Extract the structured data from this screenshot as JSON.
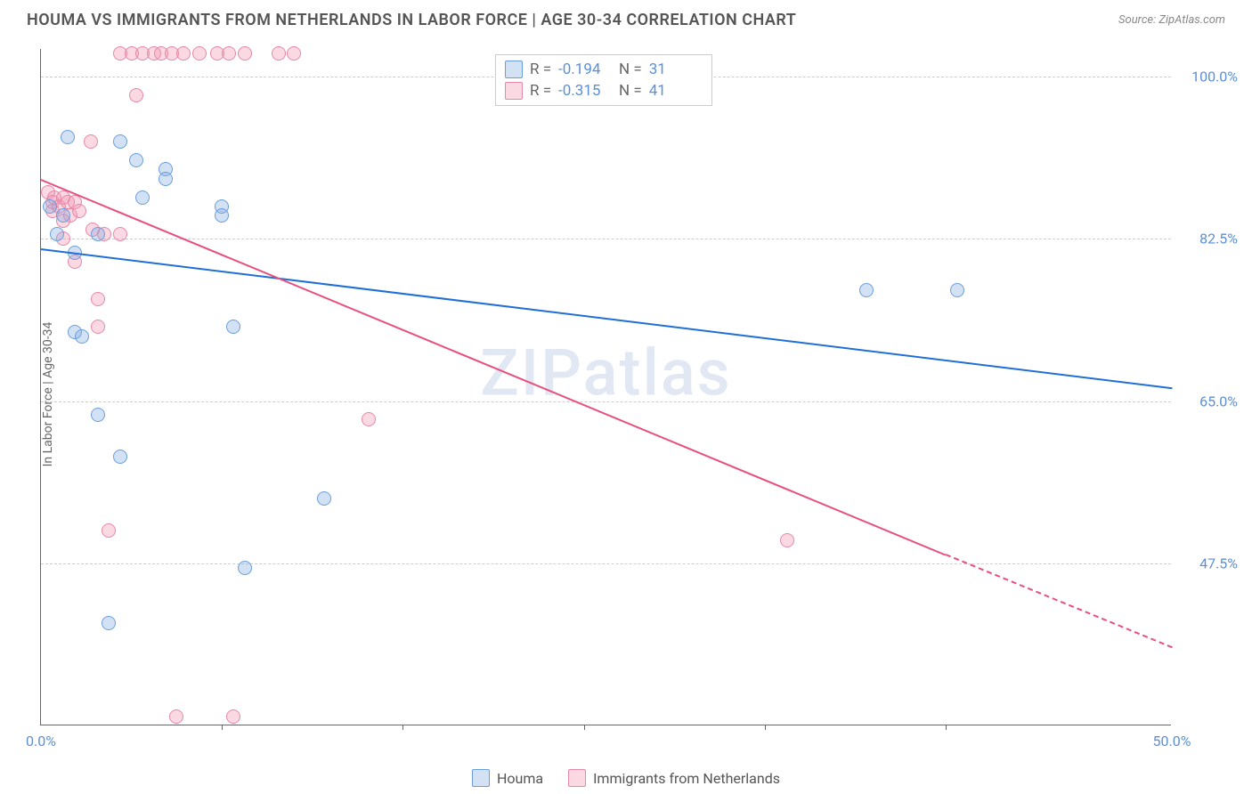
{
  "title": "HOUMA VS IMMIGRANTS FROM NETHERLANDS IN LABOR FORCE | AGE 30-34 CORRELATION CHART",
  "source": "Source: ZipAtlas.com",
  "ylabel": "In Labor Force | Age 30-34",
  "watermark": "ZIPatlas",
  "xlim": [
    0,
    50
  ],
  "ylim": [
    30,
    103
  ],
  "yticks": [
    {
      "v": 100,
      "label": "100.0%"
    },
    {
      "v": 82.5,
      "label": "82.5%"
    },
    {
      "v": 65,
      "label": "65.0%"
    },
    {
      "v": 47.5,
      "label": "47.5%"
    }
  ],
  "xticks_minor": [
    8,
    16,
    24,
    32,
    40
  ],
  "xticks_labeled": [
    {
      "v": 0,
      "label": "0.0%"
    },
    {
      "v": 50,
      "label": "50.0%"
    }
  ],
  "series": {
    "houma": {
      "color_fill": "rgba(130,170,225,0.35)",
      "color_stroke": "#6a9edb",
      "line_color": "#1f6fd6",
      "stats": {
        "R": "-0.194",
        "N": "31"
      },
      "legend_label": "Houma",
      "reg_line": {
        "x1": 0,
        "y1": 81.5,
        "x2": 50,
        "y2": 66.5
      },
      "points": [
        {
          "x": 0.4,
          "y": 86
        },
        {
          "x": 0.7,
          "y": 83
        },
        {
          "x": 1.0,
          "y": 85
        },
        {
          "x": 1.2,
          "y": 93.5
        },
        {
          "x": 1.5,
          "y": 81
        },
        {
          "x": 1.5,
          "y": 72.5
        },
        {
          "x": 1.8,
          "y": 72
        },
        {
          "x": 2.5,
          "y": 63.5
        },
        {
          "x": 2.5,
          "y": 83
        },
        {
          "x": 3.0,
          "y": 41
        },
        {
          "x": 3.5,
          "y": 93
        },
        {
          "x": 3.5,
          "y": 59
        },
        {
          "x": 4.2,
          "y": 91
        },
        {
          "x": 4.5,
          "y": 87
        },
        {
          "x": 5.5,
          "y": 90
        },
        {
          "x": 5.5,
          "y": 89
        },
        {
          "x": 8.0,
          "y": 86
        },
        {
          "x": 8.0,
          "y": 85
        },
        {
          "x": 8.5,
          "y": 73
        },
        {
          "x": 9.0,
          "y": 47
        },
        {
          "x": 12.5,
          "y": 54.5
        },
        {
          "x": 36.5,
          "y": 77
        },
        {
          "x": 40.5,
          "y": 77
        }
      ]
    },
    "netherlands": {
      "color_fill": "rgba(240,145,175,0.35)",
      "color_stroke": "#e688a8",
      "line_color": "#e84f7d",
      "stats": {
        "R": "-0.315",
        "N": "41"
      },
      "legend_label": "Immigrants from Netherlands",
      "reg_line": {
        "x1": 0,
        "y1": 89,
        "x2": 40,
        "y2": 48.5
      },
      "reg_line_ext": {
        "x1": 40,
        "y1": 48.5,
        "x2": 50,
        "y2": 38.5
      },
      "points": [
        {
          "x": 0.3,
          "y": 87.5
        },
        {
          "x": 0.5,
          "y": 86.5
        },
        {
          "x": 0.5,
          "y": 85.5
        },
        {
          "x": 0.6,
          "y": 87
        },
        {
          "x": 0.8,
          "y": 86
        },
        {
          "x": 1.0,
          "y": 87
        },
        {
          "x": 1.0,
          "y": 84.5
        },
        {
          "x": 1.0,
          "y": 82.5
        },
        {
          "x": 1.2,
          "y": 86.5
        },
        {
          "x": 1.3,
          "y": 85
        },
        {
          "x": 1.5,
          "y": 86.5
        },
        {
          "x": 1.5,
          "y": 80
        },
        {
          "x": 1.7,
          "y": 85.5
        },
        {
          "x": 2.2,
          "y": 93
        },
        {
          "x": 2.3,
          "y": 83.5
        },
        {
          "x": 2.5,
          "y": 73
        },
        {
          "x": 2.5,
          "y": 76
        },
        {
          "x": 2.8,
          "y": 83
        },
        {
          "x": 3.0,
          "y": 51
        },
        {
          "x": 3.5,
          "y": 83
        },
        {
          "x": 3.5,
          "y": 102.5
        },
        {
          "x": 4.0,
          "y": 102.5
        },
        {
          "x": 4.2,
          "y": 98
        },
        {
          "x": 4.5,
          "y": 102.5
        },
        {
          "x": 5.0,
          "y": 102.5
        },
        {
          "x": 5.3,
          "y": 102.5
        },
        {
          "x": 5.8,
          "y": 102.5
        },
        {
          "x": 6.3,
          "y": 102.5
        },
        {
          "x": 7.0,
          "y": 102.5
        },
        {
          "x": 7.8,
          "y": 102.5
        },
        {
          "x": 8.3,
          "y": 102.5
        },
        {
          "x": 9.0,
          "y": 102.5
        },
        {
          "x": 10.5,
          "y": 102.5
        },
        {
          "x": 11.2,
          "y": 102.5
        },
        {
          "x": 6.0,
          "y": 31
        },
        {
          "x": 8.5,
          "y": 31
        },
        {
          "x": 14.5,
          "y": 63
        },
        {
          "x": 33,
          "y": 50
        }
      ]
    }
  },
  "legend_box": {
    "R_label": "R =",
    "N_label": "N ="
  }
}
